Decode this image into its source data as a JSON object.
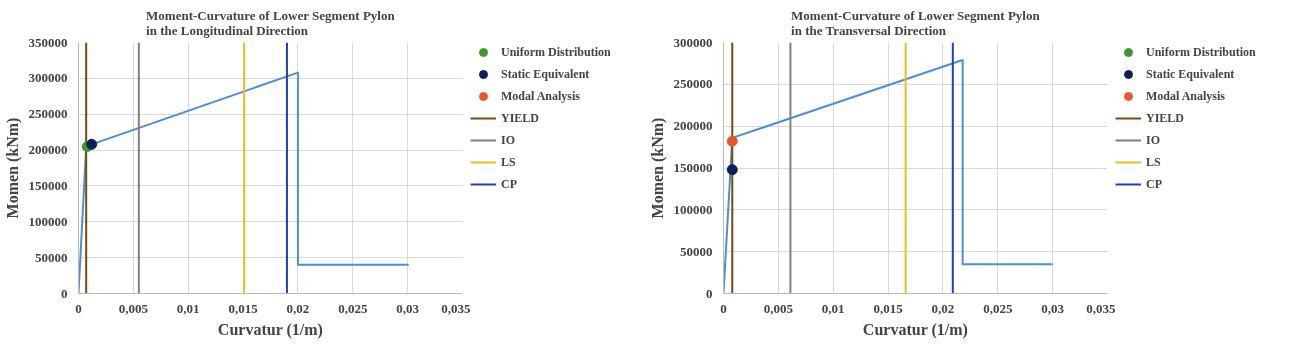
{
  "chart_data": [
    {
      "type": "line",
      "title": "Moment-Curvature of Lower Segment Pylon\nin the Longitudinal Direction",
      "xlabel": "Curvatur (1/m)",
      "ylabel": "Momen (kNm)",
      "xlim": [
        0,
        0.035
      ],
      "ylim": [
        0,
        350000
      ],
      "xticks": [
        0,
        {
          "value": 0.005,
          "label": "0,005"
        },
        {
          "value": 0.01,
          "label": "0,01"
        },
        {
          "value": 0.015,
          "label": "0,015"
        },
        {
          "value": 0.02,
          "label": "0,02"
        },
        {
          "value": 0.025,
          "label": "0,025"
        },
        {
          "value": 0.03,
          "label": "0,03"
        },
        {
          "value": 0.035,
          "label": "0,035"
        }
      ],
      "yticks": [
        0,
        50000,
        100000,
        150000,
        200000,
        250000,
        300000,
        350000
      ],
      "grid": true,
      "legend": "right",
      "series": [
        {
          "type": "line",
          "color": "#4a90d9",
          "x": [
            0,
            0.0007,
            0.0012,
            0.02,
            0.02,
            0.0301
          ],
          "values": [
            0,
            205000,
            208000,
            308000,
            40000,
            40000
          ]
        },
        {
          "type": "line",
          "name": "YIELD",
          "color": "#7a4a0a",
          "x": [
            0.0007,
            0.0007
          ],
          "values": [
            0,
            350000
          ]
        },
        {
          "type": "line",
          "name": "IO",
          "color": "#808080",
          "x": [
            0.0055,
            0.0055
          ],
          "values": [
            0,
            350000
          ]
        },
        {
          "type": "line",
          "name": "LS",
          "color": "#f5b921",
          "x": [
            0.0151,
            0.0151
          ],
          "values": [
            0,
            350000
          ]
        },
        {
          "type": "line",
          "name": "CP",
          "color": "#1f3fbf",
          "x": [
            0.019,
            0.019
          ],
          "values": [
            0,
            350000
          ]
        },
        {
          "type": "scatter",
          "marker": "circle",
          "name": "Uniform Distribution",
          "color": "#3c9a2c",
          "x": [
            0.0008
          ],
          "values": [
            205000
          ]
        },
        {
          "type": "scatter",
          "marker": "circle",
          "name": "Static Equivalent",
          "color": "#0b1f5c",
          "x": [
            0.0012
          ],
          "values": [
            208000
          ]
        },
        {
          "type": "scatter",
          "marker": "circle",
          "name": "Modal Analysis",
          "color": "#e8562a",
          "x": [
            null
          ],
          "values": [
            null
          ]
        }
      ]
    },
    {
      "type": "line",
      "title": "Moment-Curvature of Lower Segment Pylon\nin the Transversal Direction",
      "xlabel": "Curvatur (1/m)",
      "ylabel": "Momen (kNm)",
      "xlim": [
        0,
        0.035
      ],
      "ylim": [
        0,
        300000
      ],
      "xticks": [
        0,
        {
          "value": 0.005,
          "label": "0,005"
        },
        {
          "value": 0.01,
          "label": "0,01"
        },
        {
          "value": 0.015,
          "label": "0,015"
        },
        {
          "value": 0.02,
          "label": "0,02"
        },
        {
          "value": 0.025,
          "label": "0,025"
        },
        {
          "value": 0.03,
          "label": "0,03"
        },
        {
          "value": 0.035,
          "label": "0,035"
        }
      ],
      "yticks": [
        0,
        50000,
        100000,
        150000,
        200000,
        250000,
        300000
      ],
      "grid": true,
      "legend": "right",
      "series": [
        {
          "type": "line",
          "color": "#4a90d9",
          "x": [
            0,
            0.0008,
            0.0218,
            0.0218,
            0.03
          ],
          "values": [
            0,
            186000,
            279000,
            35000,
            35000
          ]
        },
        {
          "type": "line",
          "name": "YIELD",
          "color": "#7a4a0a",
          "x": [
            0.0008,
            0.0008
          ],
          "values": [
            0,
            300000
          ]
        },
        {
          "type": "line",
          "name": "IO",
          "color": "#808080",
          "x": [
            0.0061,
            0.0061
          ],
          "values": [
            0,
            300000
          ]
        },
        {
          "type": "line",
          "name": "LS",
          "color": "#f5b921",
          "x": [
            0.0166,
            0.0166
          ],
          "values": [
            0,
            300000
          ]
        },
        {
          "type": "line",
          "name": "CP",
          "color": "#1f3fbf",
          "x": [
            0.0209,
            0.0209
          ],
          "values": [
            0,
            300000
          ]
        },
        {
          "type": "scatter",
          "marker": "circle",
          "name": "Uniform Distribution",
          "color": "#3c9a2c",
          "x": [
            null
          ],
          "values": [
            null
          ]
        },
        {
          "type": "scatter",
          "marker": "circle",
          "name": "Static Equivalent",
          "color": "#0b1f5c",
          "x": [
            0.0008
          ],
          "values": [
            148000
          ]
        },
        {
          "type": "scatter",
          "marker": "circle",
          "name": "Modal Analysis",
          "color": "#e8562a",
          "x": [
            0.0008
          ],
          "values": [
            182000
          ]
        }
      ]
    }
  ]
}
